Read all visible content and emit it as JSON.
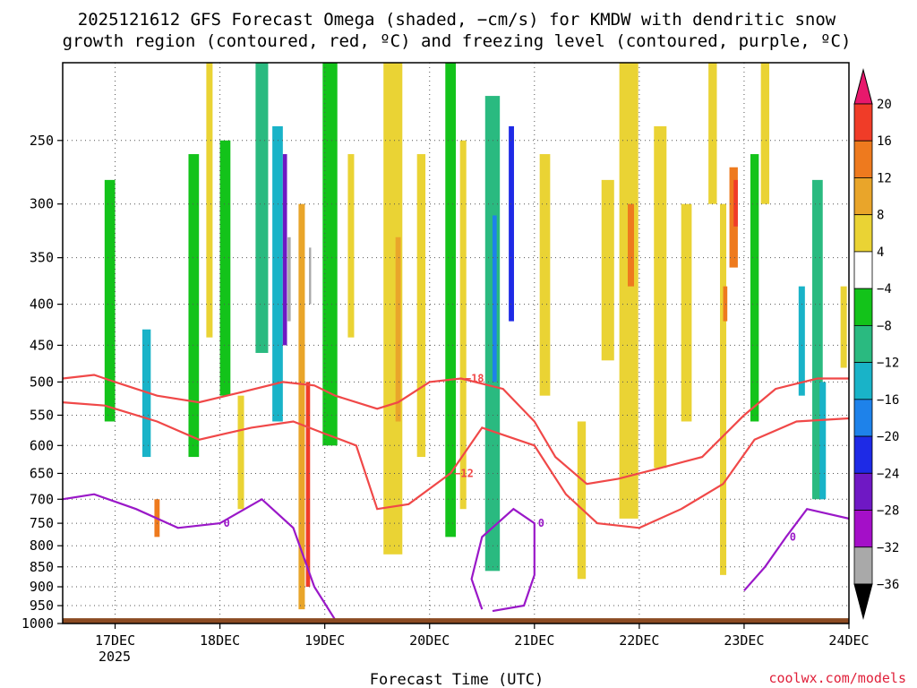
{
  "chart_data": {
    "type": "heatmap",
    "title_line1": "2025121612 GFS Forecast Omega (shaded, −cm/s) for KMDW with dendritic snow",
    "title_line2": "growth region (contoured, red, ºC) and freezing level (contoured, purple, ºC)",
    "xlabel": "Forecast Time (UTC)",
    "year_label": "2025",
    "credit": "coolwx.com/models",
    "x_ticks": [
      {
        "label": "17DEC",
        "day": 17
      },
      {
        "label": "18DEC",
        "day": 18
      },
      {
        "label": "19DEC",
        "day": 19
      },
      {
        "label": "20DEC",
        "day": 20
      },
      {
        "label": "21DEC",
        "day": 21
      },
      {
        "label": "22DEC",
        "day": 22
      },
      {
        "label": "23DEC",
        "day": 23
      },
      {
        "label": "24DEC",
        "day": 24
      }
    ],
    "x_range_days": [
      16.5,
      24.0
    ],
    "y_ticks_hpa": [
      250,
      300,
      350,
      400,
      450,
      500,
      550,
      600,
      650,
      700,
      750,
      800,
      850,
      900,
      950,
      1000
    ],
    "y_range_hpa": [
      200,
      1000
    ],
    "colorbar": {
      "labels": [
        "20",
        "16",
        "12",
        "8",
        "4",
        "−4",
        "−8",
        "−12",
        "−16",
        "−20",
        "−24",
        "−28",
        "−32",
        "−36"
      ],
      "colors": [
        "#e8186c",
        "#f03c28",
        "#ee7a1e",
        "#e9a52a",
        "#ead334",
        "#ffffff",
        "#13c31a",
        "#2aba80",
        "#19b3c8",
        "#1e82ea",
        "#1e2ae6",
        "#6f18c4",
        "#a40fc8",
        "#a9a9a9",
        "#000000"
      ]
    },
    "omega_cells": [
      {
        "t": 16.95,
        "p1": 280,
        "p2": 560,
        "w": 0.1,
        "v": -6
      },
      {
        "t": 17.3,
        "p1": 430,
        "p2": 620,
        "w": 0.08,
        "v": -14
      },
      {
        "t": 17.4,
        "p1": 700,
        "p2": 780,
        "w": 0.05,
        "v": 12
      },
      {
        "t": 17.75,
        "p1": 260,
        "p2": 620,
        "w": 0.1,
        "v": -7
      },
      {
        "t": 17.9,
        "p1": 200,
        "p2": 440,
        "w": 0.06,
        "v": 6
      },
      {
        "t": 18.05,
        "p1": 250,
        "p2": 520,
        "w": 0.1,
        "v": -8
      },
      {
        "t": 18.2,
        "p1": 520,
        "p2": 720,
        "w": 0.06,
        "v": 5
      },
      {
        "t": 18.4,
        "p1": 180,
        "p2": 460,
        "w": 0.12,
        "v": -9
      },
      {
        "t": 18.55,
        "p1": 240,
        "p2": 560,
        "w": 0.1,
        "v": -14
      },
      {
        "t": 18.62,
        "p1": 260,
        "p2": 450,
        "w": 0.04,
        "v": -27
      },
      {
        "t": 18.66,
        "p1": 330,
        "p2": 420,
        "w": 0.03,
        "v": -36
      },
      {
        "t": 18.78,
        "p1": 300,
        "p2": 960,
        "w": 0.06,
        "v": 9
      },
      {
        "t": 18.84,
        "p1": 500,
        "p2": 900,
        "w": 0.04,
        "v": 18
      },
      {
        "t": 18.86,
        "p1": 340,
        "p2": 400,
        "w": 0.02,
        "v": -36
      },
      {
        "t": 19.05,
        "p1": 200,
        "p2": 600,
        "w": 0.14,
        "v": -7
      },
      {
        "t": 19.25,
        "p1": 260,
        "p2": 440,
        "w": 0.06,
        "v": 6
      },
      {
        "t": 19.65,
        "p1": 200,
        "p2": 820,
        "w": 0.18,
        "v": 5
      },
      {
        "t": 19.7,
        "p1": 330,
        "p2": 560,
        "w": 0.05,
        "v": 10
      },
      {
        "t": 19.92,
        "p1": 260,
        "p2": 620,
        "w": 0.08,
        "v": 6
      },
      {
        "t": 20.2,
        "p1": 200,
        "p2": 780,
        "w": 0.1,
        "v": -7
      },
      {
        "t": 20.32,
        "p1": 250,
        "p2": 720,
        "w": 0.06,
        "v": 6
      },
      {
        "t": 20.6,
        "p1": 220,
        "p2": 860,
        "w": 0.14,
        "v": -10
      },
      {
        "t": 20.62,
        "p1": 310,
        "p2": 500,
        "w": 0.04,
        "v": -20
      },
      {
        "t": 20.78,
        "p1": 240,
        "p2": 420,
        "w": 0.05,
        "v": -23
      },
      {
        "t": 21.1,
        "p1": 260,
        "p2": 520,
        "w": 0.1,
        "v": 6
      },
      {
        "t": 21.45,
        "p1": 560,
        "p2": 880,
        "w": 0.08,
        "v": 6
      },
      {
        "t": 21.7,
        "p1": 280,
        "p2": 470,
        "w": 0.12,
        "v": 6
      },
      {
        "t": 21.9,
        "p1": 200,
        "p2": 740,
        "w": 0.18,
        "v": 6
      },
      {
        "t": 21.92,
        "p1": 300,
        "p2": 380,
        "w": 0.06,
        "v": 13
      },
      {
        "t": 22.2,
        "p1": 240,
        "p2": 640,
        "w": 0.12,
        "v": 5
      },
      {
        "t": 22.45,
        "p1": 300,
        "p2": 560,
        "w": 0.1,
        "v": 6
      },
      {
        "t": 22.7,
        "p1": 200,
        "p2": 300,
        "w": 0.08,
        "v": 6
      },
      {
        "t": 22.8,
        "p1": 300,
        "p2": 870,
        "w": 0.06,
        "v": 6
      },
      {
        "t": 22.82,
        "p1": 380,
        "p2": 420,
        "w": 0.04,
        "v": 14
      },
      {
        "t": 22.9,
        "p1": 270,
        "p2": 360,
        "w": 0.08,
        "v": 14
      },
      {
        "t": 22.92,
        "p1": 280,
        "p2": 320,
        "w": 0.04,
        "v": 18
      },
      {
        "t": 23.1,
        "p1": 260,
        "p2": 560,
        "w": 0.08,
        "v": -7
      },
      {
        "t": 23.2,
        "p1": 200,
        "p2": 300,
        "w": 0.08,
        "v": 6
      },
      {
        "t": 23.55,
        "p1": 380,
        "p2": 520,
        "w": 0.06,
        "v": -13
      },
      {
        "t": 23.7,
        "p1": 280,
        "p2": 700,
        "w": 0.1,
        "v": -9
      },
      {
        "t": 23.75,
        "p1": 500,
        "p2": 700,
        "w": 0.06,
        "v": -13
      },
      {
        "t": 23.95,
        "p1": 380,
        "p2": 480,
        "w": 0.06,
        "v": 5
      }
    ],
    "isotherms": [
      {
        "name": "-18°C",
        "color": "#f04848",
        "label": "−18",
        "points": [
          [
            16.5,
            495
          ],
          [
            16.8,
            490
          ],
          [
            17.0,
            500
          ],
          [
            17.4,
            520
          ],
          [
            17.8,
            530
          ],
          [
            18.2,
            515
          ],
          [
            18.6,
            500
          ],
          [
            18.9,
            505
          ],
          [
            19.1,
            520
          ],
          [
            19.5,
            540
          ],
          [
            19.7,
            530
          ],
          [
            20.0,
            500
          ],
          [
            20.3,
            495
          ],
          [
            20.7,
            510
          ],
          [
            21.0,
            560
          ],
          [
            21.2,
            620
          ],
          [
            21.5,
            670
          ],
          [
            21.8,
            660
          ],
          [
            22.2,
            640
          ],
          [
            22.6,
            620
          ],
          [
            23.0,
            550
          ],
          [
            23.3,
            510
          ],
          [
            23.7,
            495
          ],
          [
            24.0,
            495
          ]
        ]
      },
      {
        "name": "-12°C",
        "color": "#f04848",
        "label": "−12",
        "points": [
          [
            16.5,
            530
          ],
          [
            16.9,
            535
          ],
          [
            17.4,
            560
          ],
          [
            17.8,
            590
          ],
          [
            18.3,
            570
          ],
          [
            18.7,
            560
          ],
          [
            19.0,
            580
          ],
          [
            19.3,
            600
          ],
          [
            19.5,
            720
          ],
          [
            19.8,
            710
          ],
          [
            20.2,
            650
          ],
          [
            20.5,
            570
          ],
          [
            21.0,
            600
          ],
          [
            21.3,
            690
          ],
          [
            21.6,
            750
          ],
          [
            22.0,
            760
          ],
          [
            22.4,
            720
          ],
          [
            22.8,
            670
          ],
          [
            23.1,
            590
          ],
          [
            23.5,
            560
          ],
          [
            24.0,
            555
          ]
        ]
      },
      {
        "name": "0°C",
        "color": "#9a18c8",
        "label": "0",
        "points": [
          [
            16.5,
            700
          ],
          [
            16.8,
            690
          ],
          [
            17.2,
            720
          ],
          [
            17.6,
            760
          ],
          [
            18.0,
            750
          ],
          [
            18.4,
            700
          ],
          [
            18.7,
            760
          ],
          [
            18.9,
            900
          ],
          [
            19.1,
            990
          ]
        ]
      },
      {
        "name": "0°C",
        "color": "#9a18c8",
        "label": "0",
        "points": [
          [
            20.5,
            960
          ],
          [
            20.4,
            880
          ],
          [
            20.5,
            780
          ],
          [
            20.8,
            720
          ],
          [
            21.0,
            750
          ],
          [
            21.0,
            870
          ],
          [
            20.9,
            950
          ],
          [
            20.6,
            965
          ]
        ]
      },
      {
        "name": "0°C",
        "color": "#9a18c8",
        "label": "0",
        "points": [
          [
            23.0,
            910
          ],
          [
            23.2,
            850
          ],
          [
            23.4,
            780
          ],
          [
            23.6,
            720
          ],
          [
            24.0,
            740
          ]
        ]
      }
    ],
    "ground_pressure_hpa": 985
  }
}
